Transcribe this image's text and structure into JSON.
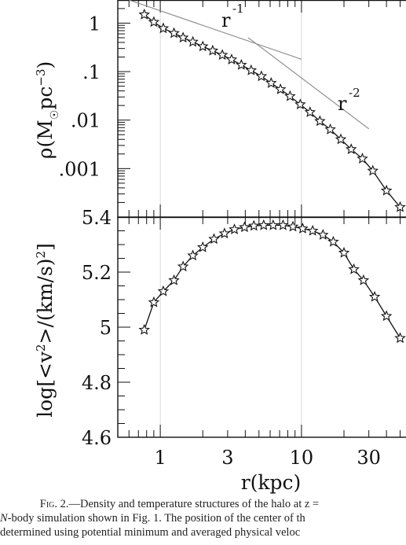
{
  "chart_data": [
    {
      "type": "line",
      "panel": "top",
      "xscale": "log",
      "yscale": "log",
      "xlim": [
        0.5,
        55
      ],
      "ylim": [
        0.0001,
        3
      ],
      "ylabel": "ρ(M⊙pc⁻³)",
      "ytick_labels": [
        "1",
        ".1",
        ".01",
        ".001"
      ],
      "yticks": [
        1,
        0.1,
        0.01,
        0.001
      ],
      "series": [
        {
          "style": "curve-with-stars",
          "x": [
            0.77,
            0.9,
            1.05,
            1.25,
            1.45,
            1.7,
            2.0,
            2.35,
            2.75,
            3.2,
            3.75,
            4.4,
            5.2,
            6.1,
            7.1,
            8.3,
            9.8,
            11.5,
            13.5,
            16,
            19,
            22.5,
            27,
            32,
            40,
            50
          ],
          "y": [
            1.5,
            1.05,
            0.78,
            0.62,
            0.5,
            0.41,
            0.33,
            0.27,
            0.22,
            0.177,
            0.137,
            0.106,
            0.08,
            0.058,
            0.043,
            0.031,
            0.021,
            0.0145,
            0.0095,
            0.0064,
            0.004,
            0.0025,
            0.0016,
            0.0009,
            0.00035,
            0.00016
          ]
        },
        {
          "style": "thin-line",
          "label": "r",
          "exponent": "-1",
          "x": [
            0.6,
            10
          ],
          "y": [
            3.0,
            0.18
          ]
        },
        {
          "style": "thin-line",
          "label": "r",
          "exponent": "-2",
          "x": [
            4.2,
            30
          ],
          "y": [
            0.5,
            0.0066
          ]
        }
      ]
    },
    {
      "type": "line",
      "panel": "bottom",
      "xscale": "log",
      "xlim": [
        0.5,
        55
      ],
      "ylim": [
        4.6,
        5.4
      ],
      "ylabel": "log[<v²>/(km/s)²]",
      "ytick_labels": [
        "5.4",
        "5.2",
        "5",
        "4.8",
        "4.6"
      ],
      "yticks": [
        5.4,
        5.2,
        5.0,
        4.8,
        4.6
      ],
      "xlabel": "r(kpc)",
      "xtick_labels": [
        "1",
        "3",
        "10",
        "30"
      ],
      "xticks": [
        1,
        3,
        10,
        30
      ],
      "series": [
        {
          "style": "curve-with-stars",
          "x": [
            0.77,
            0.9,
            1.05,
            1.25,
            1.45,
            1.7,
            2.0,
            2.4,
            2.85,
            3.35,
            3.95,
            4.6,
            5.4,
            6.3,
            7.4,
            8.7,
            10.2,
            12,
            14.2,
            16.8,
            20,
            23.5,
            27.5,
            33,
            40,
            50
          ],
          "y": [
            4.99,
            5.09,
            5.13,
            5.17,
            5.22,
            5.26,
            5.29,
            5.32,
            5.34,
            5.355,
            5.363,
            5.368,
            5.37,
            5.37,
            5.37,
            5.365,
            5.358,
            5.35,
            5.335,
            5.31,
            5.27,
            5.21,
            5.17,
            5.11,
            5.04,
            4.96
          ]
        }
      ]
    }
  ],
  "caption": {
    "line1_label": "Fig. 2.",
    "line1_text": "—Density and temperature structures of the halo at z =",
    "line2_prefix": "N",
    "line2_text": "-body simulation shown in Fig. 1. The position of the center of th",
    "line3_text": "determined using potential minimum and averaged physical veloc"
  },
  "colors": {
    "ink": "#111111",
    "background": "#ffffff",
    "guide": "#888888"
  }
}
